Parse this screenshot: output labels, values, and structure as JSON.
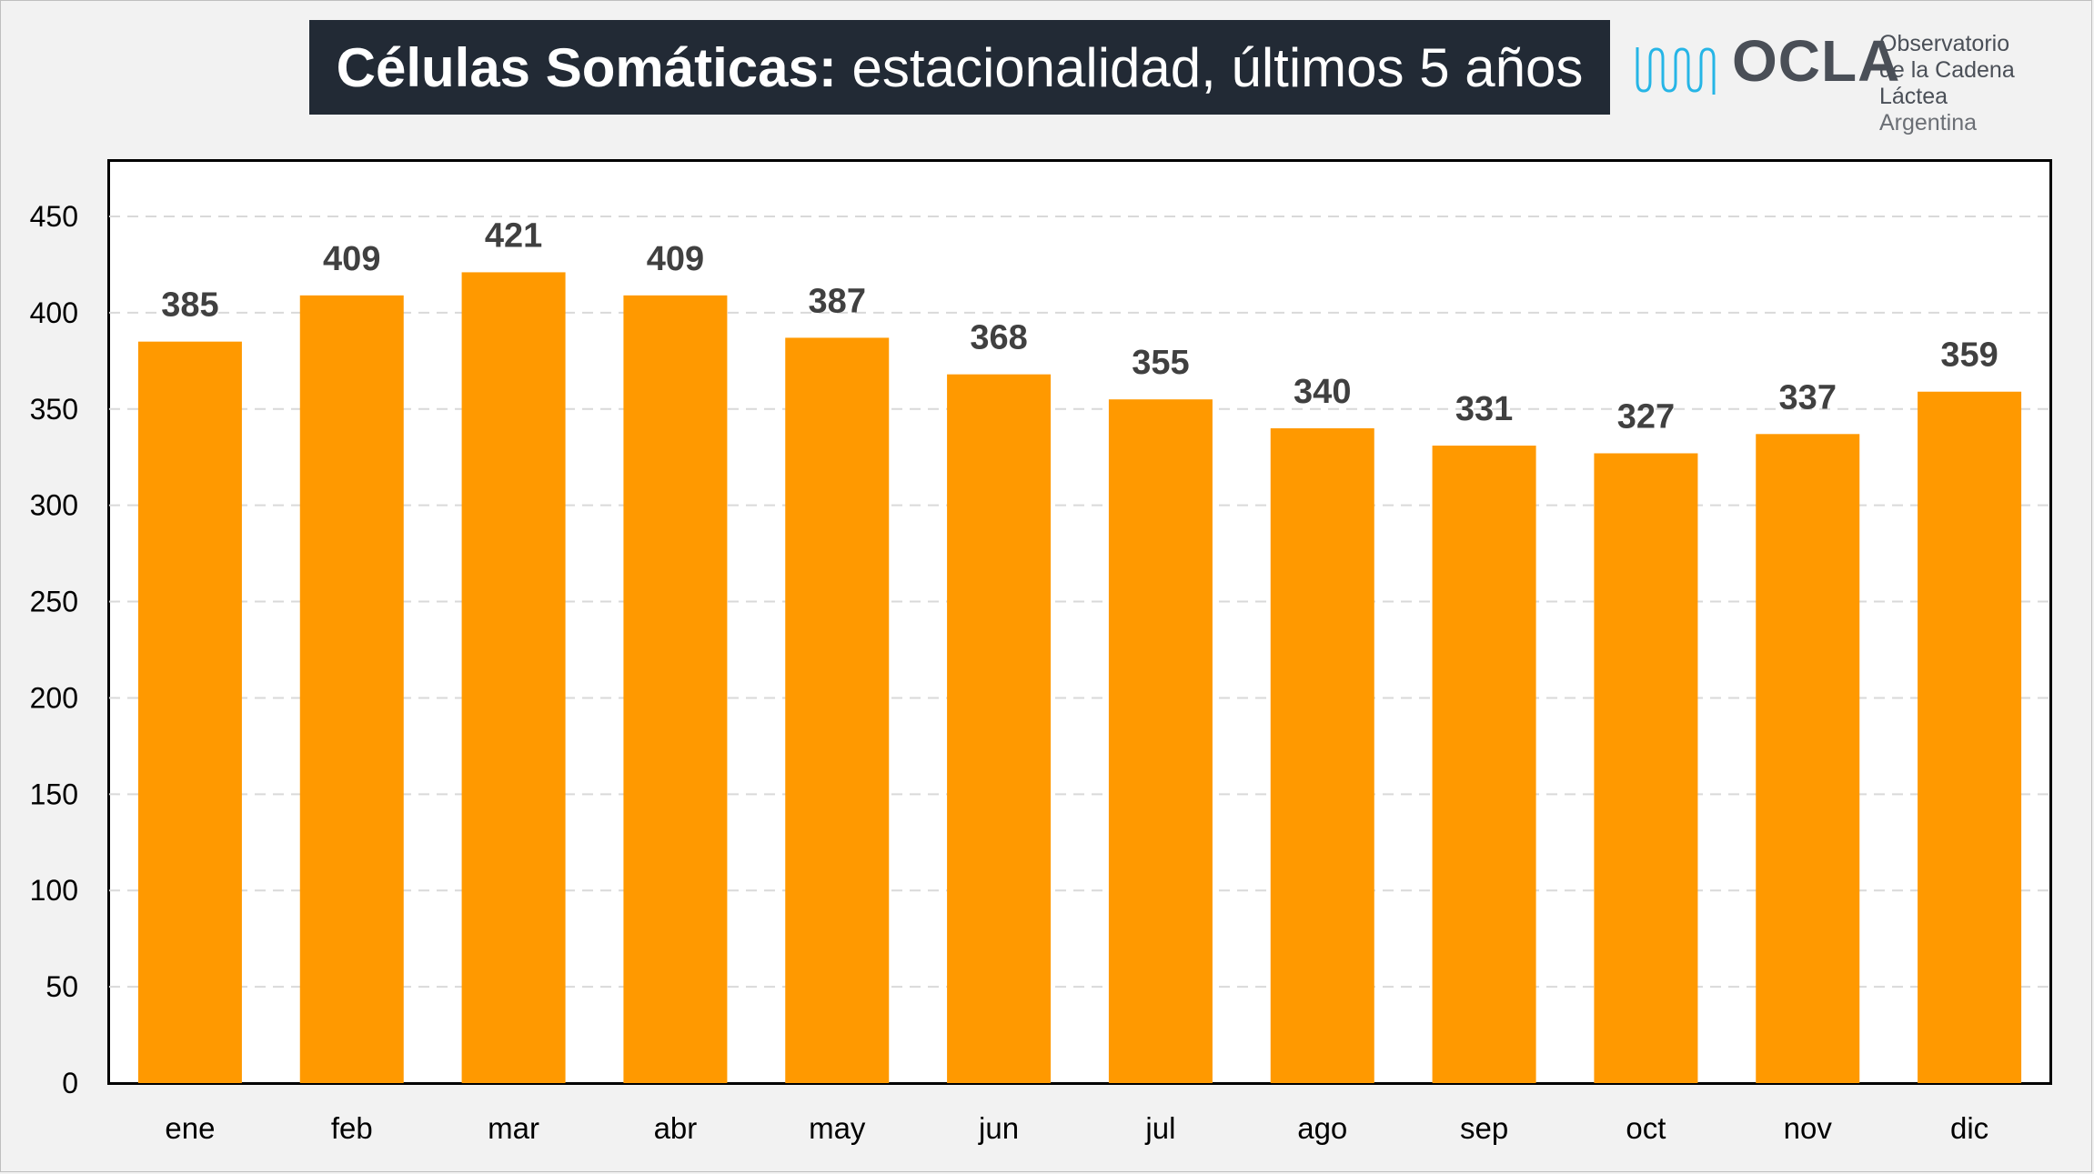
{
  "header": {
    "title_bold": "Células Somáticas:",
    "title_rest": "estacionalidad, últimos 5 años"
  },
  "logo": {
    "wordmark": "OCLA",
    "line1": "Observatorio",
    "line2": "de la Cadena Láctea",
    "line3": "Argentina",
    "mark_icon": "milk-chain-wave-icon",
    "mark_color": "#26b5e6"
  },
  "colors": {
    "bar": "#ff9900",
    "banner": "#222a35",
    "label": "#404040"
  },
  "chart_data": {
    "type": "bar",
    "title": "Células Somáticas: estacionalidad, últimos 5 años",
    "categories": [
      "ene",
      "feb",
      "mar",
      "abr",
      "may",
      "jun",
      "jul",
      "ago",
      "sep",
      "oct",
      "nov",
      "dic"
    ],
    "values": [
      385,
      409,
      421,
      409,
      387,
      368,
      355,
      340,
      331,
      327,
      337,
      359
    ],
    "ylim": [
      0,
      450
    ],
    "yticks": [
      0,
      50,
      100,
      150,
      200,
      250,
      300,
      350,
      400,
      450
    ],
    "grid": "dashed horizontal",
    "data_labels": true,
    "legend": "none",
    "xlabel": "",
    "ylabel": ""
  }
}
